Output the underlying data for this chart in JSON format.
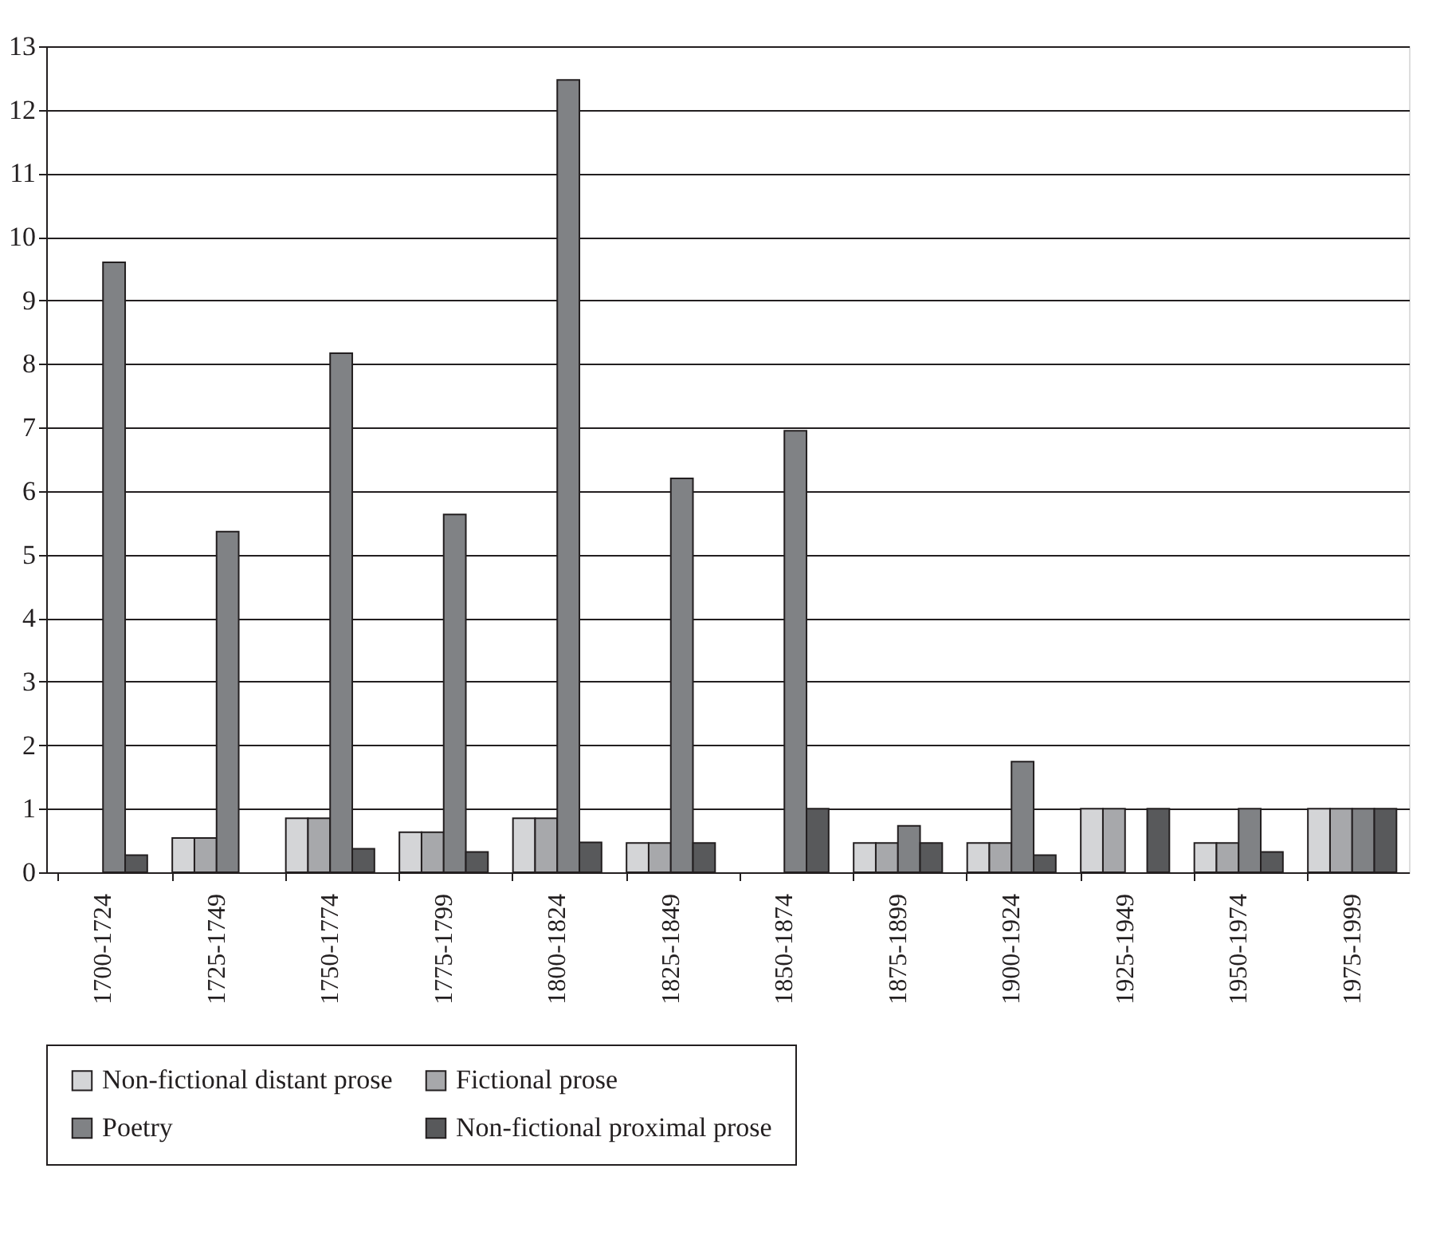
{
  "chart_data": {
    "type": "bar",
    "categories": [
      "1700-1724",
      "1725-1749",
      "1750-1774",
      "1775-1799",
      "1800-1824",
      "1825-1849",
      "1850-1874",
      "1875-1899",
      "1900-1924",
      "1925-1949",
      "1950-1974",
      "1975-1999"
    ],
    "series": [
      {
        "name": "Non-fictional distant prose",
        "color": "#d4d5d7",
        "values": [
          null,
          0.54,
          0.85,
          0.63,
          0.85,
          0.46,
          null,
          0.46,
          0.46,
          1.0,
          0.46,
          1.0
        ]
      },
      {
        "name": "Fictional prose",
        "color": "#a7a8ab",
        "values": [
          null,
          0.54,
          0.85,
          0.63,
          0.85,
          0.46,
          null,
          0.46,
          0.46,
          1.0,
          0.46,
          1.0
        ]
      },
      {
        "name": "Poetry",
        "color": "#808285",
        "values": [
          9.6,
          5.36,
          8.17,
          5.63,
          12.47,
          6.2,
          6.95,
          0.73,
          1.74,
          null,
          1.0,
          1.0
        ]
      },
      {
        "name": "Non-fictional proximal prose",
        "color": "#58595b",
        "values": [
          0.27,
          null,
          0.37,
          0.32,
          0.47,
          0.46,
          1.0,
          0.46,
          0.27,
          1.0,
          0.32,
          1.0
        ]
      }
    ],
    "ylim": [
      0,
      13
    ],
    "yticks": [
      0,
      1,
      2,
      3,
      4,
      5,
      6,
      7,
      8,
      9,
      10,
      11,
      12,
      13
    ],
    "grid": "y",
    "legend": "bottom"
  }
}
